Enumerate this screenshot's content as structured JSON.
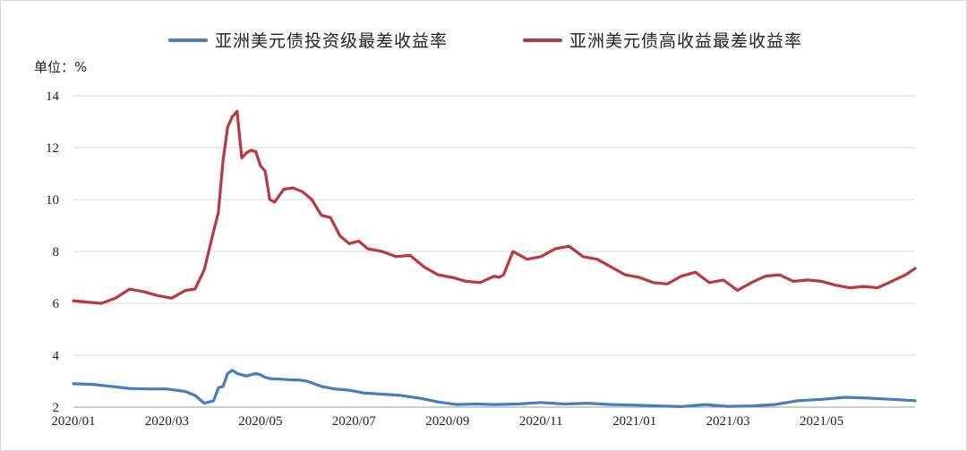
{
  "chart_data": {
    "type": "line",
    "title": "",
    "unit_label": "单位：%",
    "ylim": [
      2,
      14
    ],
    "yticks": [
      "2",
      "4",
      "6",
      "8",
      "10",
      "12",
      "14"
    ],
    "xlim": [
      0,
      18
    ],
    "xtick_labels": [
      "2020/01",
      "2020/03",
      "2020/05",
      "2020/07",
      "2020/09",
      "2020/11",
      "2021/01",
      "2021/03",
      "2021/05"
    ],
    "grid": true,
    "legend_position": "top",
    "series": [
      {
        "name": "亚洲美元债投资级最差收益率",
        "color": "#4a7ebb",
        "x": [
          0,
          0.4,
          0.8,
          1.2,
          1.6,
          2.0,
          2.4,
          2.6,
          2.8,
          3.0,
          3.1,
          3.2,
          3.3,
          3.4,
          3.5,
          3.6,
          3.7,
          3.8,
          3.9,
          4.0,
          4.1,
          4.2,
          4.4,
          4.6,
          4.8,
          5.0,
          5.3,
          5.6,
          5.9,
          6.2,
          6.6,
          7.0,
          7.4,
          7.8,
          8.2,
          8.6,
          9.0,
          9.5,
          10.0,
          10.5,
          11.0,
          11.5,
          12.0,
          12.5,
          13.0,
          13.5,
          14.0,
          14.5,
          15.0,
          15.5,
          16.0,
          16.5,
          17.0,
          17.5,
          18.0
        ],
        "y": [
          2.9,
          2.88,
          2.8,
          2.72,
          2.7,
          2.7,
          2.6,
          2.45,
          2.15,
          2.25,
          2.75,
          2.8,
          3.3,
          3.42,
          3.3,
          3.25,
          3.2,
          3.25,
          3.3,
          3.25,
          3.15,
          3.1,
          3.08,
          3.06,
          3.05,
          3.0,
          2.8,
          2.7,
          2.65,
          2.55,
          2.5,
          2.45,
          2.35,
          2.2,
          2.1,
          2.12,
          2.1,
          2.12,
          2.18,
          2.12,
          2.15,
          2.1,
          2.08,
          2.05,
          2.02,
          2.1,
          2.03,
          2.05,
          2.1,
          2.25,
          2.3,
          2.38,
          2.35,
          2.3,
          2.25
        ]
      },
      {
        "name": "亚洲美元债高收益最差收益率",
        "color": "#b93a3e",
        "x": [
          0,
          0.3,
          0.6,
          0.9,
          1.2,
          1.5,
          1.8,
          2.1,
          2.4,
          2.6,
          2.8,
          3.0,
          3.1,
          3.2,
          3.3,
          3.4,
          3.5,
          3.55,
          3.6,
          3.7,
          3.8,
          3.9,
          4.0,
          4.1,
          4.2,
          4.3,
          4.5,
          4.7,
          4.9,
          5.1,
          5.3,
          5.5,
          5.7,
          5.9,
          6.1,
          6.3,
          6.6,
          6.9,
          7.2,
          7.5,
          7.8,
          8.1,
          8.4,
          8.7,
          9.0,
          9.1,
          9.2,
          9.4,
          9.7,
          10.0,
          10.3,
          10.6,
          10.9,
          11.2,
          11.5,
          11.8,
          12.1,
          12.4,
          12.7,
          13.0,
          13.3,
          13.6,
          13.9,
          14.2,
          14.5,
          14.8,
          15.1,
          15.4,
          15.7,
          16.0,
          16.3,
          16.6,
          16.9,
          17.2,
          17.5,
          17.8,
          18.0
        ],
        "y": [
          6.1,
          6.05,
          6.0,
          6.2,
          6.55,
          6.45,
          6.3,
          6.2,
          6.5,
          6.55,
          7.3,
          8.8,
          9.5,
          11.5,
          12.8,
          13.2,
          13.4,
          12.5,
          11.6,
          11.8,
          11.9,
          11.85,
          11.3,
          11.1,
          10.0,
          9.9,
          10.4,
          10.45,
          10.3,
          10.0,
          9.4,
          9.3,
          8.6,
          8.3,
          8.4,
          8.1,
          8.0,
          7.8,
          7.85,
          7.4,
          7.1,
          7.0,
          6.85,
          6.8,
          7.05,
          7.0,
          7.1,
          8.0,
          7.7,
          7.8,
          8.1,
          8.2,
          7.8,
          7.7,
          7.4,
          7.1,
          7.0,
          6.8,
          6.75,
          7.05,
          7.2,
          6.8,
          6.9,
          6.5,
          6.8,
          7.05,
          7.1,
          6.85,
          6.9,
          6.85,
          6.7,
          6.6,
          6.65,
          6.6,
          6.85,
          7.1,
          7.35
        ]
      }
    ]
  }
}
